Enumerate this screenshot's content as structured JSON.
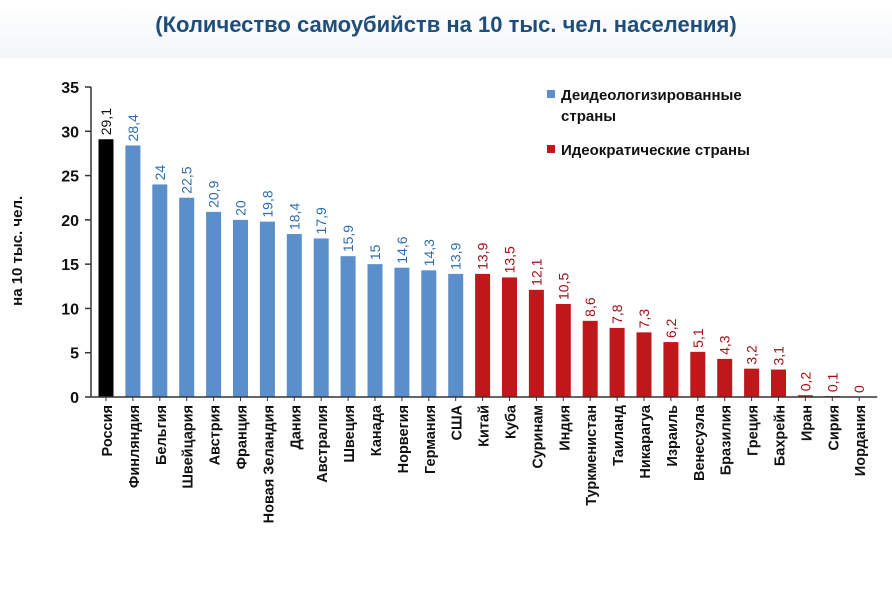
{
  "header": {
    "title": "(Количество самоубийств на 10 тыс. чел. населения)"
  },
  "chart_data": {
    "type": "bar",
    "ylabel": "на 10 тыс. чел.",
    "xlabel": "",
    "ylim": [
      0,
      35
    ],
    "yticks": [
      "0",
      "5",
      "10",
      "15",
      "20",
      "25",
      "30",
      "35"
    ],
    "grid": false,
    "legend_position": "top-right",
    "categories": [
      "Россия",
      "Финляндия",
      "Бельгия",
      "Швейцария",
      "Австрия",
      "Франция",
      "Новая Зеландия",
      "Дания",
      "Австралия",
      "Швеция",
      "Канада",
      "Норвегия",
      "Германия",
      "США",
      "Китай",
      "Куба",
      "Суринам",
      "Индия",
      "Туркменистан",
      "Таиланд",
      "Никарагуа",
      "Израиль",
      "Венесуэла",
      "Бразилия",
      "Греция",
      "Бахрейн",
      "Иран",
      "Сирия",
      "Иордания"
    ],
    "values": [
      29.1,
      28.4,
      24,
      22.5,
      20.9,
      20,
      19.8,
      18.4,
      17.9,
      15.9,
      15,
      14.6,
      14.3,
      13.9,
      13.9,
      13.5,
      12.1,
      10.5,
      8.6,
      7.8,
      7.3,
      6.2,
      5.1,
      4.3,
      3.2,
      3.1,
      0.2,
      0.1,
      0
    ],
    "value_labels": [
      "29,1",
      "28,4",
      "24",
      "22,5",
      "20,9",
      "20",
      "19,8",
      "18,4",
      "17,9",
      "15,9",
      "15",
      "14,6",
      "14,3",
      "13,9",
      "13,9",
      "13,5",
      "12,1",
      "10,5",
      "8,6",
      "7,8",
      "7,3",
      "6,2",
      "5,1",
      "4,3",
      "3,2",
      "3,1",
      "0,2",
      "0,1",
      "0"
    ],
    "groups": [
      "russia",
      "deideo",
      "deideo",
      "deideo",
      "deideo",
      "deideo",
      "deideo",
      "deideo",
      "deideo",
      "deideo",
      "deideo",
      "deideo",
      "deideo",
      "deideo",
      "ideo",
      "ideo",
      "ideo",
      "ideo",
      "ideo",
      "ideo",
      "ideo",
      "ideo",
      "ideo",
      "ideo",
      "ideo",
      "ideo",
      "ideo",
      "ideo",
      "ideo"
    ],
    "series": [
      {
        "name": "Деидеологизированные страны",
        "name_lines": [
          "Деидеологизированные",
          "страны"
        ],
        "group": "deideo"
      },
      {
        "name": "Идеократические страны",
        "name_lines": [
          "Идеократические страны"
        ],
        "group": "ideo"
      }
    ],
    "colors": {
      "russia": "#000000",
      "deideo": "#5b8fcc",
      "ideo": "#c0181a",
      "russia_label": "#111111",
      "deideo_label": "#2f6ea8",
      "ideo_label": "#a01014"
    }
  }
}
